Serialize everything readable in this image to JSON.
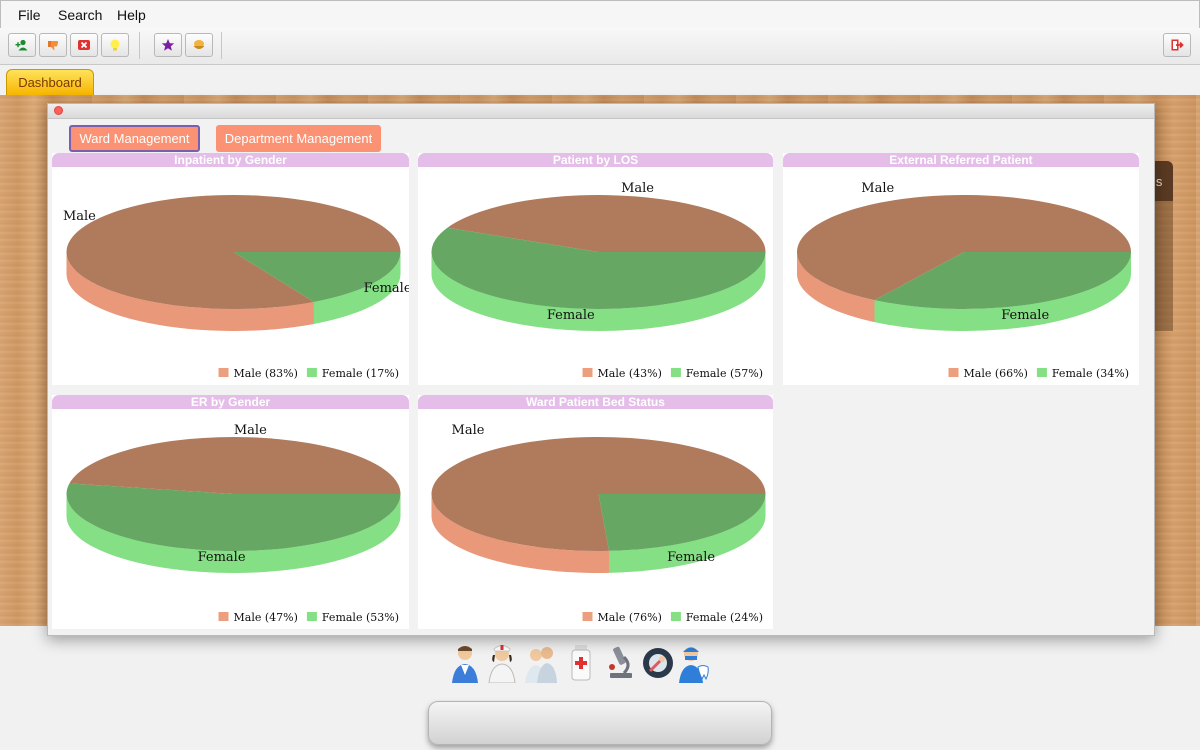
{
  "menu": [
    "File",
    "Search",
    "Help"
  ],
  "toolbar_icons": [
    "add-user-icon",
    "thumbs-down-icon",
    "cancel-icon",
    "lightbulb-icon",
    "star-icon",
    "food-bowl-icon",
    "logout-icon"
  ],
  "tabs": {
    "dashboard": "Dashboard"
  },
  "background_panel_text": "ns",
  "window": {
    "buttons": {
      "ward": "Ward Management",
      "department": "Department Management"
    }
  },
  "colors": {
    "male": "#e9987a",
    "female": "#85df84",
    "title_bar": "#e5bde9",
    "button": "#fa9273"
  },
  "chart_data": [
    {
      "type": "pie",
      "title": "Inpatient by Gender",
      "slice_labels": [
        "Male",
        "Female"
      ],
      "legend": [
        "Male (83%)",
        "Female (17%)"
      ],
      "values": [
        83,
        17
      ]
    },
    {
      "type": "pie",
      "title": "Patient by LOS",
      "slice_labels": [
        "Male",
        "Female"
      ],
      "legend": [
        "Male (43%)",
        "Female (57%)"
      ],
      "values": [
        43,
        57
      ]
    },
    {
      "type": "pie",
      "title": "External Referred Patient",
      "slice_labels": [
        "Male",
        "Female"
      ],
      "legend": [
        "Male (66%)",
        "Female (34%)"
      ],
      "values": [
        66,
        34
      ]
    },
    {
      "type": "pie",
      "title": "ER by Gender",
      "slice_labels": [
        "Male",
        "Female"
      ],
      "legend": [
        "Male (47%)",
        "Female (53%)"
      ],
      "values": [
        47,
        53
      ]
    },
    {
      "type": "pie",
      "title": "Ward Patient Bed Status",
      "slice_labels": [
        "Male",
        "Female"
      ],
      "legend": [
        "Male (76%)",
        "Female (24%)"
      ],
      "values": [
        76,
        24
      ]
    }
  ],
  "dock_icons": [
    "doctor-icon",
    "nurse-icon",
    "medical-staff-icon",
    "pharmacy-icon",
    "laboratory-microscope-icon",
    "radiology-icon",
    "dentist-icon"
  ]
}
